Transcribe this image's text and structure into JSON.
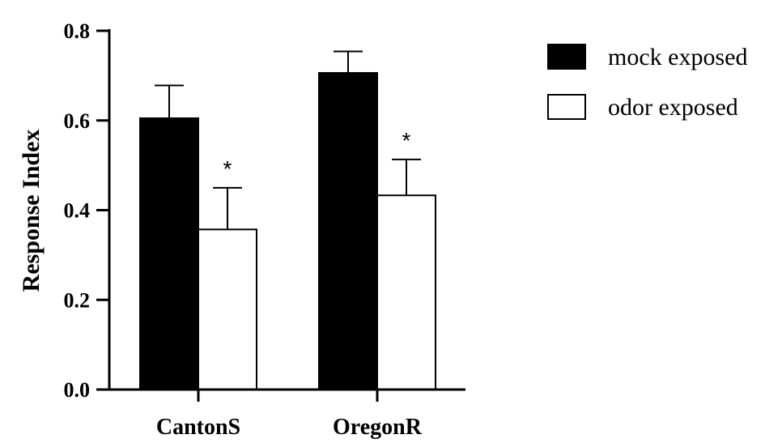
{
  "chart_data": {
    "type": "bar",
    "categories": [
      "CantonS",
      "OregonR"
    ],
    "series": [
      {
        "name": "mock exposed",
        "values": [
          0.605,
          0.706
        ],
        "errors": [
          0.073,
          0.048
        ],
        "color": "#000000"
      },
      {
        "name": "odor exposed",
        "values": [
          0.357,
          0.433
        ],
        "errors": [
          0.093,
          0.08
        ],
        "color": "#ffffff"
      }
    ],
    "significance": [
      [
        "",
        ""
      ],
      [
        "*",
        "*"
      ]
    ],
    "title": "",
    "xlabel": "",
    "ylabel": "Response Index",
    "ylim": [
      0,
      0.8
    ],
    "yticks": [
      "0.0",
      "0.2",
      "0.4",
      "0.6",
      "0.8"
    ],
    "legend": "top-right",
    "grid": false
  }
}
